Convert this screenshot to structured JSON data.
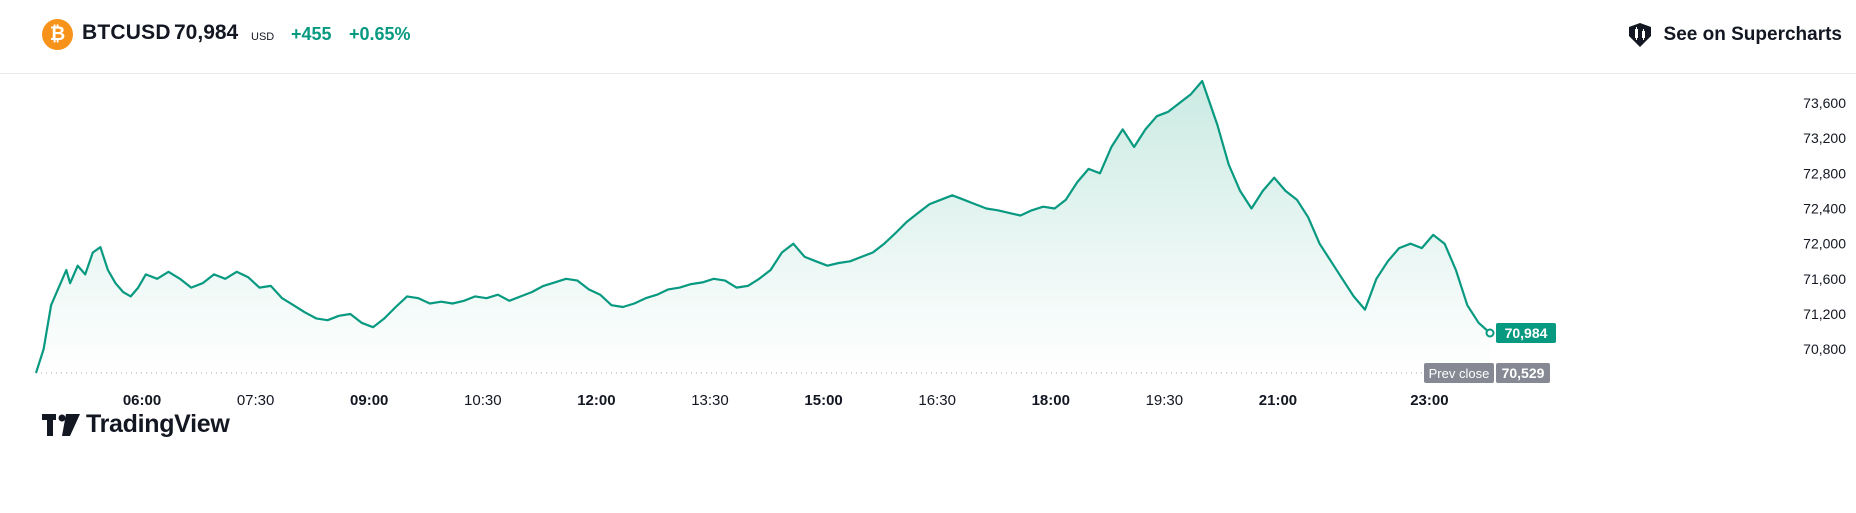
{
  "header": {
    "coin_icon": "bitcoin-icon",
    "coin_glyph": "₿",
    "symbol": "BTCUSD",
    "price": "70,984",
    "currency": "USD",
    "change": "+455",
    "change_pct": "+0.65%",
    "supercharts_icon": "candlestick-icon",
    "supercharts_label": "See on Supercharts"
  },
  "logo": {
    "text": "TradingView",
    "icon": "tradingview-logo-icon"
  },
  "colors": {
    "line": "#089981",
    "fill_top": "#c8e9e1",
    "fill_bottom": "#ffffff",
    "up": "#089981",
    "prev_close": "#868993",
    "bitcoin": "#f7931a"
  },
  "chart_data": {
    "type": "area",
    "y_axis_labels": [
      "73,600",
      "73,200",
      "72,800",
      "72,400",
      "72,000",
      "71,600",
      "71,200",
      "70,800"
    ],
    "x_axis_labels": [
      {
        "label": "06:00",
        "bold": true
      },
      {
        "label": "07:30",
        "bold": false
      },
      {
        "label": "09:00",
        "bold": true
      },
      {
        "label": "10:30",
        "bold": false
      },
      {
        "label": "12:00",
        "bold": true
      },
      {
        "label": "13:30",
        "bold": false
      },
      {
        "label": "15:00",
        "bold": true
      },
      {
        "label": "16:30",
        "bold": false
      },
      {
        "label": "18:00",
        "bold": true
      },
      {
        "label": "19:30",
        "bold": false
      },
      {
        "label": "21:00",
        "bold": true
      },
      {
        "label": "23:00",
        "bold": true
      }
    ],
    "ylim": [
      70529,
      73950
    ],
    "last_price_label": "70,984",
    "prev_close_label": "Prev close",
    "prev_close_value": "70,529",
    "prev_close": 70529,
    "x_unit": "hours",
    "points": [
      [
        4.6,
        70530
      ],
      [
        4.7,
        70800
      ],
      [
        4.8,
        71300
      ],
      [
        4.9,
        71500
      ],
      [
        5.0,
        71700
      ],
      [
        5.05,
        71550
      ],
      [
        5.15,
        71750
      ],
      [
        5.25,
        71650
      ],
      [
        5.35,
        71900
      ],
      [
        5.45,
        71960
      ],
      [
        5.55,
        71700
      ],
      [
        5.65,
        71550
      ],
      [
        5.75,
        71450
      ],
      [
        5.85,
        71400
      ],
      [
        5.95,
        71500
      ],
      [
        6.05,
        71650
      ],
      [
        6.2,
        71600
      ],
      [
        6.35,
        71680
      ],
      [
        6.5,
        71600
      ],
      [
        6.65,
        71500
      ],
      [
        6.8,
        71550
      ],
      [
        6.95,
        71650
      ],
      [
        7.1,
        71600
      ],
      [
        7.25,
        71680
      ],
      [
        7.4,
        71620
      ],
      [
        7.55,
        71500
      ],
      [
        7.7,
        71520
      ],
      [
        7.85,
        71380
      ],
      [
        8.0,
        71300
      ],
      [
        8.15,
        71220
      ],
      [
        8.3,
        71150
      ],
      [
        8.45,
        71130
      ],
      [
        8.6,
        71180
      ],
      [
        8.75,
        71200
      ],
      [
        8.9,
        71100
      ],
      [
        9.05,
        71050
      ],
      [
        9.2,
        71150
      ],
      [
        9.35,
        71280
      ],
      [
        9.5,
        71400
      ],
      [
        9.65,
        71380
      ],
      [
        9.8,
        71320
      ],
      [
        9.95,
        71340
      ],
      [
        10.1,
        71320
      ],
      [
        10.25,
        71350
      ],
      [
        10.4,
        71400
      ],
      [
        10.55,
        71380
      ],
      [
        10.7,
        71420
      ],
      [
        10.85,
        71350
      ],
      [
        11.0,
        71400
      ],
      [
        11.15,
        71450
      ],
      [
        11.3,
        71520
      ],
      [
        11.45,
        71560
      ],
      [
        11.6,
        71600
      ],
      [
        11.75,
        71580
      ],
      [
        11.9,
        71480
      ],
      [
        12.05,
        71420
      ],
      [
        12.2,
        71300
      ],
      [
        12.35,
        71280
      ],
      [
        12.5,
        71320
      ],
      [
        12.65,
        71380
      ],
      [
        12.8,
        71420
      ],
      [
        12.95,
        71480
      ],
      [
        13.1,
        71500
      ],
      [
        13.25,
        71540
      ],
      [
        13.4,
        71560
      ],
      [
        13.55,
        71600
      ],
      [
        13.7,
        71580
      ],
      [
        13.85,
        71500
      ],
      [
        14.0,
        71520
      ],
      [
        14.15,
        71600
      ],
      [
        14.3,
        71700
      ],
      [
        14.45,
        71900
      ],
      [
        14.6,
        72000
      ],
      [
        14.75,
        71850
      ],
      [
        14.9,
        71800
      ],
      [
        15.05,
        71750
      ],
      [
        15.2,
        71780
      ],
      [
        15.35,
        71800
      ],
      [
        15.5,
        71850
      ],
      [
        15.65,
        71900
      ],
      [
        15.8,
        72000
      ],
      [
        15.95,
        72120
      ],
      [
        16.1,
        72250
      ],
      [
        16.25,
        72350
      ],
      [
        16.4,
        72450
      ],
      [
        16.55,
        72500
      ],
      [
        16.7,
        72550
      ],
      [
        16.85,
        72500
      ],
      [
        17.0,
        72450
      ],
      [
        17.15,
        72400
      ],
      [
        17.3,
        72380
      ],
      [
        17.45,
        72350
      ],
      [
        17.6,
        72320
      ],
      [
        17.75,
        72380
      ],
      [
        17.9,
        72420
      ],
      [
        18.05,
        72400
      ],
      [
        18.2,
        72500
      ],
      [
        18.35,
        72700
      ],
      [
        18.5,
        72850
      ],
      [
        18.65,
        72800
      ],
      [
        18.8,
        73100
      ],
      [
        18.95,
        73300
      ],
      [
        19.1,
        73100
      ],
      [
        19.25,
        73300
      ],
      [
        19.4,
        73450
      ],
      [
        19.55,
        73500
      ],
      [
        19.7,
        73600
      ],
      [
        19.85,
        73700
      ],
      [
        20.0,
        73850
      ],
      [
        20.1,
        73600
      ],
      [
        20.2,
        73350
      ],
      [
        20.35,
        72900
      ],
      [
        20.5,
        72600
      ],
      [
        20.65,
        72400
      ],
      [
        20.8,
        72600
      ],
      [
        20.95,
        72750
      ],
      [
        21.1,
        72600
      ],
      [
        21.25,
        72500
      ],
      [
        21.4,
        72300
      ],
      [
        21.55,
        72000
      ],
      [
        21.7,
        71800
      ],
      [
        21.85,
        71600
      ],
      [
        22.0,
        71400
      ],
      [
        22.15,
        71250
      ],
      [
        22.3,
        71600
      ],
      [
        22.45,
        71800
      ],
      [
        22.6,
        71950
      ],
      [
        22.75,
        72000
      ],
      [
        22.9,
        71950
      ],
      [
        23.05,
        72100
      ],
      [
        23.2,
        72000
      ],
      [
        23.35,
        71700
      ],
      [
        23.5,
        71300
      ],
      [
        23.65,
        71100
      ],
      [
        23.8,
        70984
      ]
    ]
  }
}
